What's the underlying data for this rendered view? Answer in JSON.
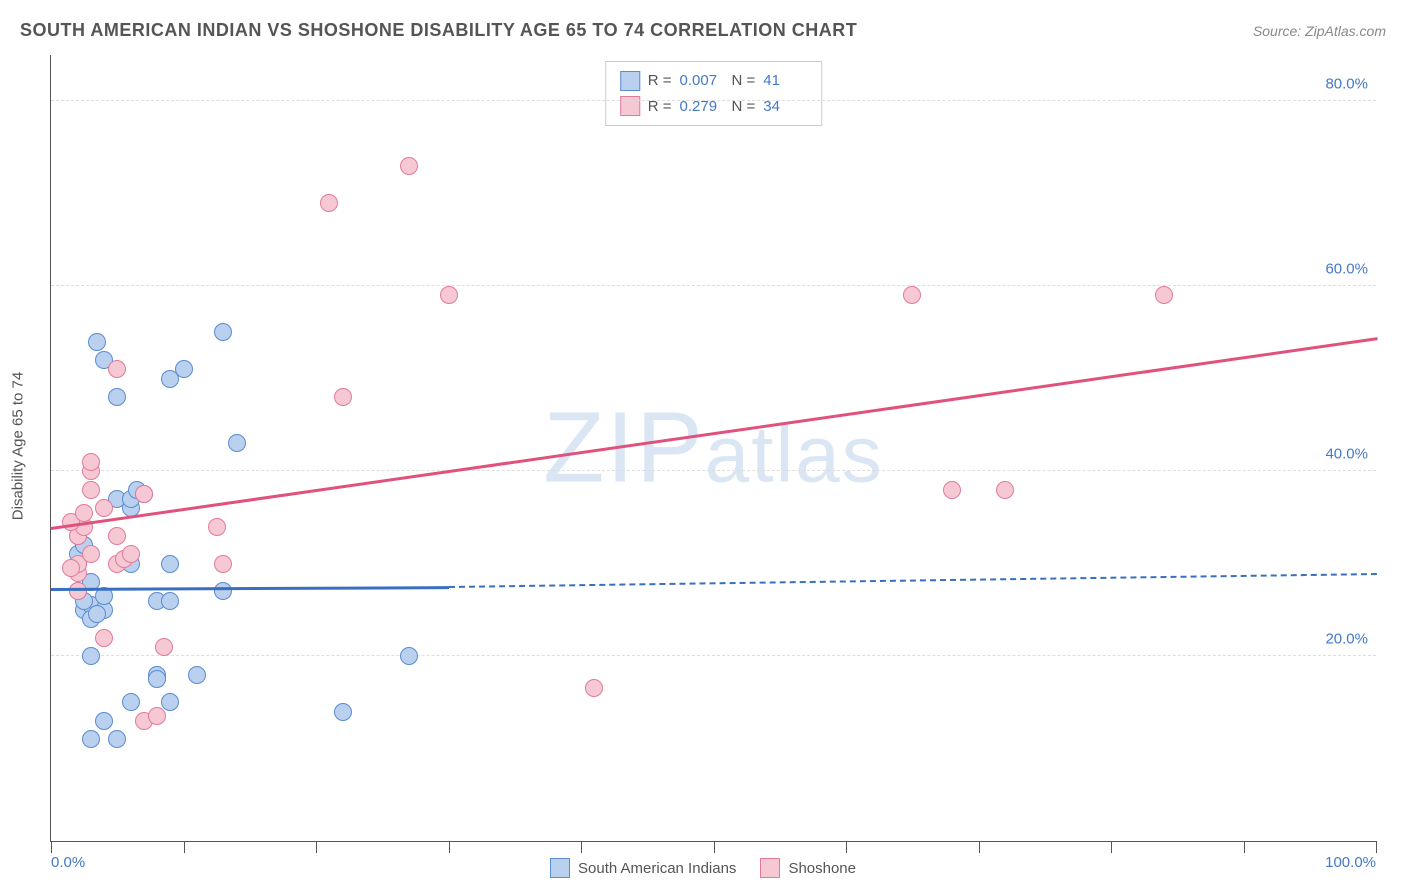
{
  "title": "SOUTH AMERICAN INDIAN VS SHOSHONE DISABILITY AGE 65 TO 74 CORRELATION CHART",
  "source": "Source: ZipAtlas.com",
  "y_axis_label": "Disability Age 65 to 74",
  "watermark": "ZIPatlas",
  "chart": {
    "type": "scatter",
    "xlim": [
      0,
      100
    ],
    "ylim": [
      0,
      85
    ],
    "y_ticks": [
      {
        "val": 20,
        "label": "20.0%"
      },
      {
        "val": 40,
        "label": "40.0%"
      },
      {
        "val": 60,
        "label": "60.0%"
      },
      {
        "val": 80,
        "label": "80.0%"
      }
    ],
    "x_tick_positions": [
      0,
      10,
      20,
      30,
      40,
      50,
      60,
      70,
      80,
      90,
      100
    ],
    "x_labels": [
      {
        "val": 0,
        "label": "0.0%"
      },
      {
        "val": 100,
        "label": "100.0%"
      }
    ],
    "background_color": "#ffffff",
    "grid_color": "#dddddd",
    "marker_radius": 9,
    "series": [
      {
        "name": "South American Indians",
        "fill": "#b9d0ee",
        "stroke": "#5a8cd0",
        "R": "0.007",
        "N": "41",
        "trendline": {
          "color": "#3a6fc0",
          "x1": 0,
          "y1": 27.4,
          "x2": 30,
          "y2": 27.6,
          "dash_x2": 100,
          "dash_y2": 29.0
        },
        "points": [
          [
            3,
            11
          ],
          [
            5,
            11
          ],
          [
            4,
            13
          ],
          [
            6,
            15
          ],
          [
            9,
            15
          ],
          [
            22,
            14
          ],
          [
            8,
            18
          ],
          [
            11,
            18
          ],
          [
            8,
            17.5
          ],
          [
            27,
            20
          ],
          [
            3,
            20
          ],
          [
            2.5,
            25
          ],
          [
            3,
            25.5
          ],
          [
            2.5,
            26
          ],
          [
            4,
            25
          ],
          [
            4,
            26.5
          ],
          [
            2,
            27
          ],
          [
            3,
            28
          ],
          [
            2,
            30
          ],
          [
            2,
            31
          ],
          [
            2.5,
            32
          ],
          [
            2,
            33
          ],
          [
            5,
            37
          ],
          [
            6,
            36
          ],
          [
            6,
            37
          ],
          [
            6.5,
            38
          ],
          [
            7,
            37.5
          ],
          [
            6,
            30
          ],
          [
            9,
            30
          ],
          [
            8,
            26
          ],
          [
            9,
            26
          ],
          [
            3,
            24
          ],
          [
            3.5,
            24.5
          ],
          [
            13,
            27
          ],
          [
            14,
            43
          ],
          [
            5,
            48
          ],
          [
            9,
            50
          ],
          [
            10,
            51
          ],
          [
            13,
            55
          ],
          [
            4,
            52
          ],
          [
            3.5,
            54
          ]
        ]
      },
      {
        "name": "Shoshone",
        "fill": "#f6c8d4",
        "stroke": "#e17b9a",
        "R": "0.279",
        "N": "34",
        "trendline": {
          "color": "#e0527c",
          "x1": 0,
          "y1": 34.0,
          "x2": 100,
          "y2": 54.5
        },
        "points": [
          [
            2,
            29
          ],
          [
            2,
            30
          ],
          [
            2,
            33
          ],
          [
            2.5,
            34
          ],
          [
            1.5,
            34.5
          ],
          [
            3,
            38
          ],
          [
            3,
            40
          ],
          [
            3,
            41
          ],
          [
            1.5,
            29.5
          ],
          [
            2,
            27
          ],
          [
            5,
            30
          ],
          [
            5.5,
            30.5
          ],
          [
            6,
            31
          ],
          [
            7,
            13
          ],
          [
            8,
            13.5
          ],
          [
            8.5,
            21
          ],
          [
            5,
            51
          ],
          [
            7,
            37.5
          ],
          [
            13,
            30
          ],
          [
            12.5,
            34
          ],
          [
            22,
            48
          ],
          [
            21,
            69
          ],
          [
            27,
            73
          ],
          [
            30,
            59
          ],
          [
            41,
            16.5
          ],
          [
            65,
            59
          ],
          [
            68,
            38
          ],
          [
            72,
            38
          ],
          [
            84,
            59
          ],
          [
            4,
            22
          ],
          [
            2.5,
            35.5
          ],
          [
            3,
            31
          ],
          [
            4,
            36
          ],
          [
            5,
            33
          ]
        ]
      }
    ]
  },
  "legend_bottom": [
    {
      "key": 0,
      "label": "South American Indians"
    },
    {
      "key": 1,
      "label": "Shoshone"
    }
  ]
}
